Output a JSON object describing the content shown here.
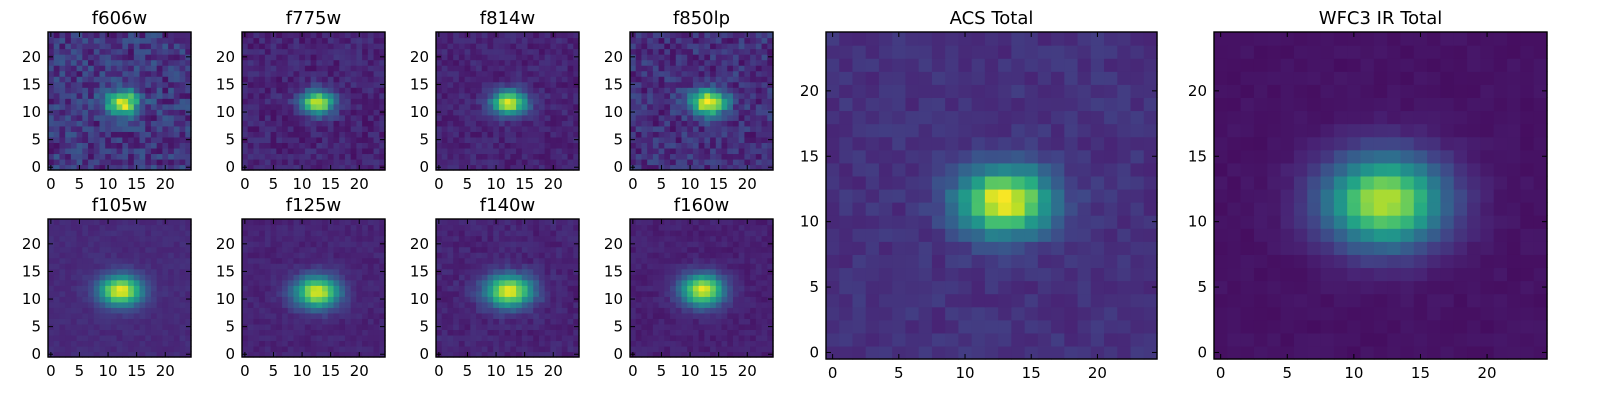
{
  "colormap": "viridis",
  "chart_data": [
    {
      "type": "heatmap",
      "title": "f606w",
      "grid": 25,
      "xlim": [
        -0.5,
        24.5
      ],
      "ylim": [
        -0.5,
        24.5
      ],
      "xticks": [
        0,
        5,
        10,
        15,
        20
      ],
      "yticks": [
        0,
        5,
        10,
        15,
        20
      ],
      "center": [
        12.5,
        11.8
      ],
      "sigma": [
        2.0,
        1.5
      ],
      "peak": 0.85,
      "background": 0.16,
      "noise": 0.12
    },
    {
      "type": "heatmap",
      "title": "f775w",
      "grid": 25,
      "xlim": [
        -0.5,
        24.5
      ],
      "ylim": [
        -0.5,
        24.5
      ],
      "xticks": [
        0,
        5,
        10,
        15,
        20
      ],
      "yticks": [
        0,
        5,
        10,
        15,
        20
      ],
      "center": [
        12.7,
        11.8
      ],
      "sigma": [
        2.0,
        1.5
      ],
      "peak": 0.85,
      "background": 0.1,
      "noise": 0.06
    },
    {
      "type": "heatmap",
      "title": "f814w",
      "grid": 25,
      "xlim": [
        -0.5,
        24.5
      ],
      "ylim": [
        -0.5,
        24.5
      ],
      "xticks": [
        0,
        5,
        10,
        15,
        20
      ],
      "yticks": [
        0,
        5,
        10,
        15,
        20
      ],
      "center": [
        12.3,
        11.8
      ],
      "sigma": [
        2.1,
        1.5
      ],
      "peak": 0.87,
      "background": 0.1,
      "noise": 0.05
    },
    {
      "type": "heatmap",
      "title": "f850lp",
      "grid": 25,
      "xlim": [
        -0.5,
        24.5
      ],
      "ylim": [
        -0.5,
        24.5
      ],
      "xticks": [
        0,
        5,
        10,
        15,
        20
      ],
      "yticks": [
        0,
        5,
        10,
        15,
        20
      ],
      "center": [
        13.2,
        11.8
      ],
      "sigma": [
        2.2,
        1.6
      ],
      "peak": 0.84,
      "background": 0.14,
      "noise": 0.1
    },
    {
      "type": "heatmap",
      "title": "f105w",
      "grid": 25,
      "xlim": [
        -0.5,
        24.5
      ],
      "ylim": [
        -0.5,
        24.5
      ],
      "xticks": [
        0,
        5,
        10,
        15,
        20
      ],
      "yticks": [
        0,
        5,
        10,
        15,
        20
      ],
      "center": [
        12.2,
        11.6
      ],
      "sigma": [
        2.6,
        1.9
      ],
      "peak": 0.86,
      "background": 0.12,
      "noise": 0.025
    },
    {
      "type": "heatmap",
      "title": "f125w",
      "grid": 25,
      "xlim": [
        -0.5,
        24.5
      ],
      "ylim": [
        -0.5,
        24.5
      ],
      "xticks": [
        0,
        5,
        10,
        15,
        20
      ],
      "yticks": [
        0,
        5,
        10,
        15,
        20
      ],
      "center": [
        12.6,
        11.3
      ],
      "sigma": [
        2.7,
        2.0
      ],
      "peak": 0.85,
      "background": 0.1,
      "noise": 0.03
    },
    {
      "type": "heatmap",
      "title": "f140w",
      "grid": 25,
      "xlim": [
        -0.5,
        24.5
      ],
      "ylim": [
        -0.5,
        24.5
      ],
      "xticks": [
        0,
        5,
        10,
        15,
        20
      ],
      "yticks": [
        0,
        5,
        10,
        15,
        20
      ],
      "center": [
        12.3,
        11.5
      ],
      "sigma": [
        2.9,
        2.0
      ],
      "peak": 0.86,
      "background": 0.1,
      "noise": 0.04
    },
    {
      "type": "heatmap",
      "title": "f160w",
      "grid": 25,
      "xlim": [
        -0.5,
        24.5
      ],
      "ylim": [
        -0.5,
        24.5
      ],
      "xticks": [
        0,
        5,
        10,
        15,
        20
      ],
      "yticks": [
        0,
        5,
        10,
        15,
        20
      ],
      "center": [
        12.2,
        11.7
      ],
      "sigma": [
        2.6,
        2.0
      ],
      "peak": 0.87,
      "background": 0.09,
      "noise": 0.03
    },
    {
      "type": "heatmap",
      "title": "ACS Total",
      "grid": 25,
      "xlim": [
        -0.5,
        24.5
      ],
      "ylim": [
        -0.5,
        24.5
      ],
      "xticks": [
        0,
        5,
        10,
        15,
        20
      ],
      "yticks": [
        0,
        5,
        10,
        15,
        20
      ],
      "center": [
        13.0,
        11.6
      ],
      "sigma": [
        2.4,
        1.8
      ],
      "peak": 0.86,
      "background": 0.14,
      "noise": 0.04
    },
    {
      "type": "heatmap",
      "title": "WFC3 IR Total",
      "grid": 25,
      "xlim": [
        -0.5,
        24.5
      ],
      "ylim": [
        -0.5,
        24.5
      ],
      "xticks": [
        0,
        5,
        10,
        15,
        20
      ],
      "yticks": [
        0,
        5,
        10,
        15,
        20
      ],
      "center": [
        12.3,
        11.6
      ],
      "sigma": [
        3.1,
        2.4
      ],
      "peak": 0.85,
      "background": 0.05,
      "noise": 0.015
    }
  ]
}
